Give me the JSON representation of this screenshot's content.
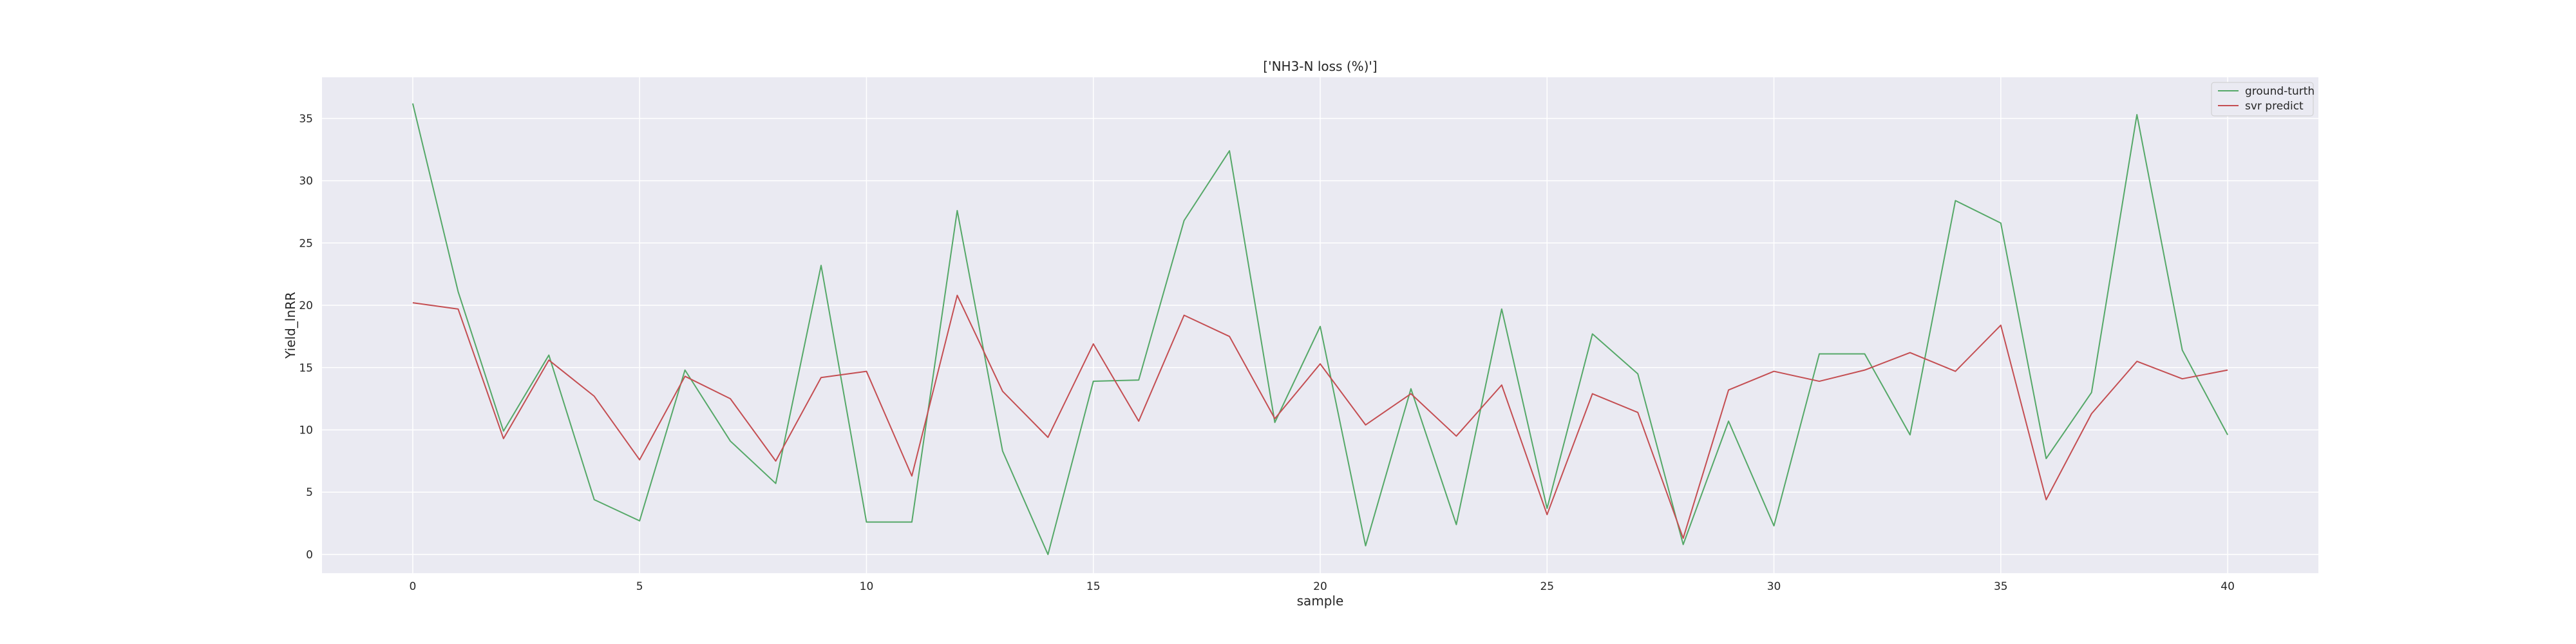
{
  "chart_data": {
    "type": "line",
    "title": "['NH3-N loss (%)']",
    "xlabel": "sample",
    "ylabel": "Yield_lnRR",
    "xlim": [
      -2,
      42
    ],
    "ylim": [
      -1.5,
      38.3
    ],
    "xticks": [
      0,
      5,
      10,
      15,
      20,
      25,
      30,
      35,
      40
    ],
    "yticks": [
      0,
      5,
      10,
      15,
      20,
      25,
      30,
      35
    ],
    "grid": true,
    "legend_position": "top-right",
    "x": [
      0,
      1,
      2,
      3,
      4,
      5,
      6,
      7,
      8,
      9,
      10,
      11,
      12,
      13,
      14,
      15,
      16,
      17,
      18,
      19,
      20,
      21,
      22,
      23,
      24,
      25,
      26,
      27,
      28,
      29,
      30,
      31,
      32,
      33,
      34,
      35,
      36,
      37,
      38,
      39,
      40
    ],
    "series": [
      {
        "name": "ground-turth",
        "color": "#55a868",
        "values": [
          36.2,
          21.1,
          9.9,
          16.0,
          4.4,
          2.7,
          14.8,
          9.1,
          5.7,
          23.2,
          2.6,
          2.6,
          27.6,
          8.3,
          0.0,
          13.9,
          14.0,
          26.8,
          32.4,
          10.6,
          18.3,
          0.7,
          13.3,
          2.4,
          19.7,
          3.7,
          17.7,
          14.5,
          0.8,
          10.7,
          2.3,
          16.1,
          16.1,
          9.6,
          28.4,
          26.6,
          7.7,
          13.0,
          35.3,
          16.4,
          9.6
        ]
      },
      {
        "name": "svr predict",
        "color": "#c44e52",
        "values": [
          20.2,
          19.7,
          9.3,
          15.6,
          12.7,
          7.6,
          14.3,
          12.5,
          7.5,
          14.2,
          14.7,
          6.3,
          20.8,
          13.1,
          9.4,
          16.9,
          10.7,
          19.2,
          17.5,
          10.9,
          15.3,
          10.4,
          12.9,
          9.5,
          13.6,
          3.2,
          12.9,
          11.4,
          1.3,
          13.2,
          14.7,
          13.9,
          14.8,
          16.2,
          14.7,
          18.4,
          4.4,
          11.3,
          15.5,
          14.1,
          14.8
        ]
      }
    ]
  }
}
